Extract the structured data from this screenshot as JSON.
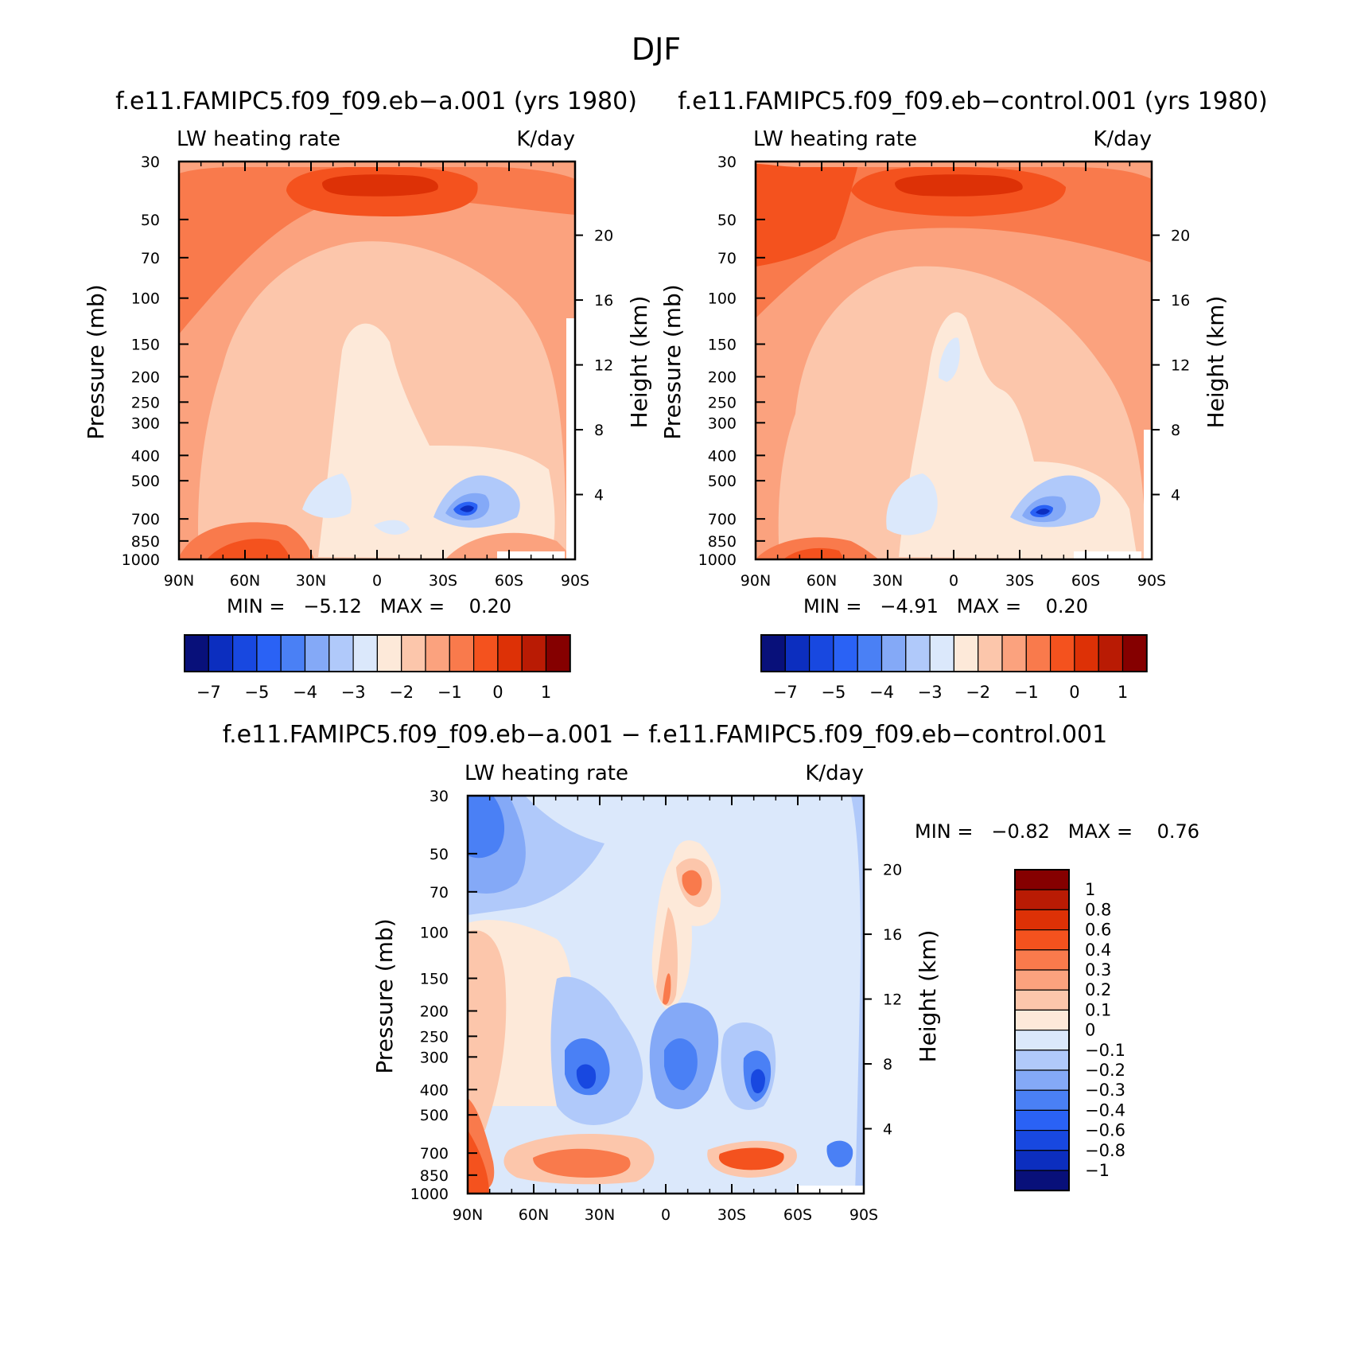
{
  "figure": {
    "title": "DJF"
  },
  "panels": [
    {
      "id": "p1",
      "title": "f.e11.FAMIPC5.f09_f09.eb−a.001 (yrs 1980)",
      "left_label": "LW heating rate",
      "right_label": "K/day",
      "ylabel": "Pressure (mb)",
      "y2label": "Height (km)",
      "stats_text": "MIN =   −5.12   MAX =    0.20"
    },
    {
      "id": "p2",
      "title": "f.e11.FAMIPC5.f09_f09.eb−control.001 (yrs 1980)",
      "left_label": "LW heating rate",
      "right_label": "K/day",
      "ylabel": "Pressure (mb)",
      "y2label": "Height (km)",
      "stats_text": "MIN =   −4.91   MAX =    0.20"
    },
    {
      "id": "p3",
      "title": "f.e11.FAMIPC5.f09_f09.eb−a.001 − f.e11.FAMIPC5.f09_f09.eb−control.001",
      "left_label": "LW heating rate",
      "right_label": "K/day",
      "ylabel": "Pressure (mb)",
      "y2label": "Height (km)",
      "stats_text": "MIN =   −0.82   MAX =    0.76"
    }
  ],
  "chart_data": [
    {
      "type": "heatmap",
      "panel": "p1",
      "variable": "LW heating rate",
      "units": "K/day",
      "x_ticks": [
        "90N",
        "60N",
        "30N",
        "0",
        "30S",
        "60S",
        "90S"
      ],
      "y_ticks": [
        30,
        50,
        70,
        100,
        150,
        200,
        250,
        300,
        400,
        500,
        700,
        850,
        1000
      ],
      "y_tick_labels": [
        "30",
        "50",
        "70",
        "100",
        "150",
        "200",
        "250",
        "300",
        "400",
        "500",
        "700",
        "850",
        "1000"
      ],
      "y2_ticks": [
        20,
        16,
        12,
        8,
        4
      ],
      "y2_tick_labels": [
        "20",
        "16",
        "12",
        "8",
        "4"
      ],
      "ylim": [
        1000,
        30
      ],
      "min": -5.12,
      "max": 0.2
    },
    {
      "type": "heatmap",
      "panel": "p2",
      "variable": "LW heating rate",
      "units": "K/day",
      "x_ticks": [
        "90N",
        "60N",
        "30N",
        "0",
        "30S",
        "60S",
        "90S"
      ],
      "y_ticks": [
        30,
        50,
        70,
        100,
        150,
        200,
        250,
        300,
        400,
        500,
        700,
        850,
        1000
      ],
      "y_tick_labels": [
        "30",
        "50",
        "70",
        "100",
        "150",
        "200",
        "250",
        "300",
        "400",
        "500",
        "700",
        "850",
        "1000"
      ],
      "y2_ticks": [
        20,
        16,
        12,
        8,
        4
      ],
      "y2_tick_labels": [
        "20",
        "16",
        "12",
        "8",
        "4"
      ],
      "ylim": [
        1000,
        30
      ],
      "min": -4.91,
      "max": 0.2
    },
    {
      "type": "heatmap",
      "panel": "p3",
      "variable": "LW heating rate",
      "units": "K/day",
      "x_ticks": [
        "90N",
        "60N",
        "30N",
        "0",
        "30S",
        "60S",
        "90S"
      ],
      "y_ticks": [
        30,
        50,
        70,
        100,
        150,
        200,
        250,
        300,
        400,
        500,
        700,
        850,
        1000
      ],
      "y_tick_labels": [
        "30",
        "50",
        "70",
        "100",
        "150",
        "200",
        "250",
        "300",
        "400",
        "500",
        "700",
        "850",
        "1000"
      ],
      "y2_ticks": [
        20,
        16,
        12,
        8,
        4
      ],
      "y2_tick_labels": [
        "20",
        "16",
        "12",
        "8",
        "4"
      ],
      "ylim": [
        1000,
        30
      ],
      "min": -0.82,
      "max": 0.76
    }
  ],
  "colorbars": {
    "horizontal": {
      "colors": [
        "#08107a",
        "#0c2ebf",
        "#1848e0",
        "#2a62f5",
        "#4a80f5",
        "#84a9f7",
        "#b0c9fa",
        "#dbe8fb",
        "#fde9d9",
        "#fcc6ab",
        "#fba27e",
        "#f97a4c",
        "#f4521e",
        "#dd3106",
        "#b91b04",
        "#850000"
      ],
      "labels": [
        "−7",
        "−5",
        "−4",
        "−3",
        "−2",
        "−1",
        "0",
        "1"
      ]
    },
    "vertical": {
      "colors_top_to_bottom": [
        "#850000",
        "#b91b04",
        "#dd3106",
        "#f4521e",
        "#f97a4c",
        "#fba27e",
        "#fcc6ab",
        "#fde9d9",
        "#dbe8fb",
        "#b0c9fa",
        "#84a9f7",
        "#4a80f5",
        "#2a62f5",
        "#1848e0",
        "#0c2ebf",
        "#08107a"
      ],
      "labels": [
        "1",
        "0.8",
        "0.6",
        "0.4",
        "0.3",
        "0.2",
        "0.1",
        "0",
        "−0.1",
        "−0.2",
        "−0.3",
        "−0.4",
        "−0.6",
        "−0.8",
        "−1"
      ]
    }
  }
}
